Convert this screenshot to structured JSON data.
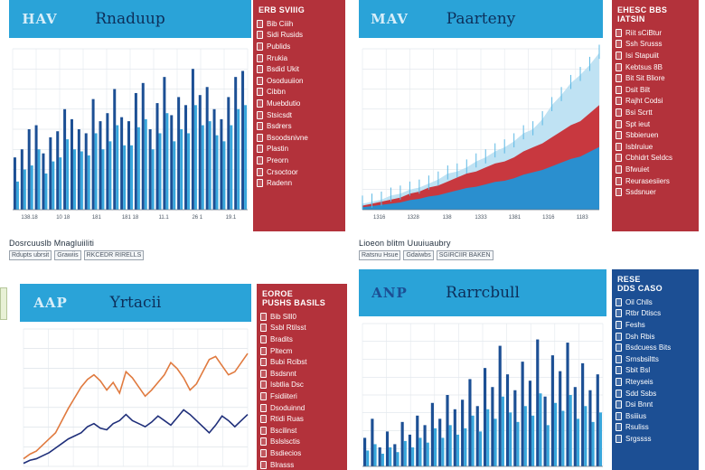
{
  "colors": {
    "header": "#2aa3d8",
    "side_red": "#b3323b",
    "side_blue": "#1c4f94",
    "bar_dark": "#1c4f94",
    "bar_light": "#39a7dc",
    "line_orange": "#e07a3f",
    "line_navy": "#1f2f7a",
    "area_red": "#c8383f"
  },
  "panels": [
    {
      "logo": "HAV",
      "title": "Rnaduup",
      "side_head": "ERB SVIIIG",
      "side_items": [
        "Bib Ciiih",
        "Sidi Rusids",
        "Publids",
        "Rrukia",
        "Bsdid Ukit",
        "Osoduuiion",
        "Cibbn",
        "Muebdutio",
        "Stsicsdt",
        "Bsdrers",
        "Bsoodsnivne",
        "Plastin",
        "Preorn",
        "Crsoctoor",
        "Radenn"
      ],
      "chart_data": {
        "type": "bar",
        "x_tick_labels": [
          "138.18",
          "10 18",
          "181",
          "181 18",
          "11.1",
          "26 1",
          "19.1"
        ],
        "series": [
          {
            "values": [
              26,
              30,
              40,
              42,
              28,
              36,
              39,
              50,
              45,
              40,
              38,
              55,
              44,
              48,
              60,
              46,
              44,
              58,
              63,
              40,
              53,
              66,
              47,
              56,
              52,
              70,
              57,
              61,
              50,
              45,
              56,
              66,
              69
            ]
          },
          {
            "values": [
              14,
              20,
              22,
              30,
              18,
              24,
              26,
              35,
              30,
              29,
              27,
              38,
              30,
              34,
              42,
              32,
              32,
              41,
              45,
              30,
              38,
              48,
              34,
              40,
              38,
              52,
              42,
              44,
              37,
              34,
              42,
              50,
              52
            ]
          }
        ],
        "ylim": [
          0,
          80
        ]
      },
      "caption": "Dosrcuuslb Mnagluiiliti",
      "subcaption": [
        "Rdupts ubrsit",
        "Grawiis",
        "RKCEDR RIRELLS"
      ]
    },
    {
      "logo": "MAV",
      "title": "Paarteny",
      "side_head": "EHESC BBS IATSIN",
      "side_items": [
        "Riit sCiBtur",
        "Ssh Srusss",
        "Isi Stapuiit",
        "Kebtsus 8B",
        "Bit Sit Bliore",
        "Dsit Bilt",
        "Rajht Codsi",
        "Bsi Scrtt",
        "Spt ieut",
        "Sbbieruen",
        "Isblruiue",
        "Cbhidrt Seldcs",
        "Bfwuiet",
        "Reurasesiiers",
        "Ssdsnuer"
      ],
      "chart_data": {
        "type": "area",
        "x_tick_labels": [
          "1316",
          "1328",
          "138",
          "1333",
          "1381",
          "1316",
          "1183"
        ],
        "series": [
          {
            "values": [
              2,
              3,
              4,
              5,
              6,
              8,
              9,
              11,
              12,
              14,
              16,
              18,
              19,
              21,
              23,
              24,
              26,
              29,
              31,
              33,
              36,
              39,
              42,
              44,
              48,
              52
            ]
          },
          {
            "values": [
              3,
              4,
              5,
              7,
              8,
              10,
              11,
              13,
              15,
              18,
              19,
              21,
              24,
              26,
              29,
              31,
              34,
              38,
              40,
              45,
              52,
              57,
              63,
              67,
              72,
              78
            ]
          }
        ],
        "ylim": [
          0,
          80
        ]
      },
      "caption": "Lioeon blitm Uuuiuaubry",
      "subcaption": [
        "Ratsnu Hsue",
        "Gdaiwbs",
        "SGIRCIIR BAKEN"
      ]
    },
    {
      "logo": "AAP",
      "title": "Yrtacii",
      "side_head": "EOROE\nPUSHS BASILS",
      "side_items": [
        "Bib Slll0",
        "Ssbl Rtilsst",
        "Bradits",
        "Pltecm",
        "Bubi Rcibst",
        "Bsdsnnt",
        "Isbtlia Dsc",
        "Fsidiiteri",
        "Dsoduinnd",
        "Rtidi Ruas",
        "Bscilinst",
        "Bslslsctis",
        "Bsdiecios",
        "Blrasss"
      ],
      "chart_data": {
        "type": "line",
        "series": [
          {
            "values": [
              5,
              8,
              10,
              14,
              18,
              22,
              30,
              38,
              45,
              52,
              57,
              60,
              56,
              50,
              55,
              48,
              62,
              58,
              52,
              46,
              50,
              55,
              60,
              68,
              64,
              58,
              50,
              54,
              62,
              70,
              72,
              66,
              60,
              62,
              68,
              74
            ]
          },
          {
            "values": [
              2,
              4,
              5,
              7,
              9,
              12,
              15,
              18,
              20,
              22,
              26,
              28,
              25,
              24,
              28,
              30,
              34,
              30,
              28,
              26,
              29,
              33,
              30,
              27,
              32,
              37,
              34,
              30,
              26,
              22,
              27,
              33,
              30,
              26,
              30,
              34
            ]
          }
        ],
        "ylim": [
          0,
          90
        ]
      }
    },
    {
      "logo": "ANP",
      "title": "Rarrcbull",
      "side_head": "RESE\nDDS CASO",
      "side_items": [
        "Oil Chlls",
        "Rtbr Dtiscs",
        "Feshs",
        "Dsh Rbis",
        "Bsdcuess Bits",
        "Srnsbsiltts",
        "Sbit Bsl",
        "Rteyseis",
        "Sdd Ssbs",
        "Dsi Bnnt",
        "Bsiiius",
        "Rsuliss",
        "Srgssss"
      ],
      "chart_data": {
        "type": "bar",
        "series": [
          {
            "values": [
              18,
              30,
              12,
              22,
              14,
              28,
              20,
              32,
              26,
              40,
              30,
              45,
              36,
              42,
              55,
              38,
              62,
              50,
              76,
              58,
              48,
              66,
              54,
              80,
              44,
              70,
              60,
              78,
              50,
              65,
              48,
              58
            ]
          },
          {
            "values": [
              10,
              14,
              8,
              12,
              9,
              16,
              12,
              18,
              15,
              24,
              18,
              26,
              20,
              24,
              32,
              22,
              36,
              30,
              44,
              34,
              28,
              38,
              32,
              46,
              26,
              40,
              35,
              45,
              30,
              38,
              28,
              34
            ]
          }
        ],
        "ylim": [
          0,
          90
        ]
      }
    }
  ]
}
